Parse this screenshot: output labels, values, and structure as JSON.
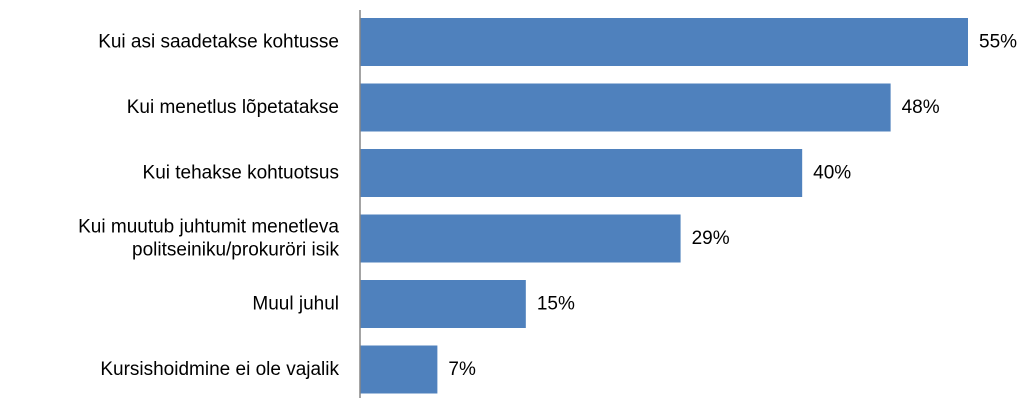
{
  "chart_data": {
    "type": "bar",
    "orientation": "horizontal",
    "categories": [
      [
        "Kui asi saadetakse kohtusse"
      ],
      [
        "Kui menetlus lõpetatakse"
      ],
      [
        "Kui tehakse kohtuotsus"
      ],
      [
        "Kui muutub juhtumit menetleva",
        "politseiniku/prokuröri isik"
      ],
      [
        "Muul juhul"
      ],
      [
        "Kursishoidmine ei ole vajalik"
      ]
    ],
    "values": [
      55,
      48,
      40,
      29,
      15,
      7
    ],
    "value_labels": [
      "55%",
      "48%",
      "40%",
      "29%",
      "15%",
      "7%"
    ],
    "title": "",
    "xlabel": "",
    "ylabel": "",
    "unit": "%",
    "xlim": [
      0,
      60
    ],
    "grid": false,
    "legend": "none",
    "bar_color": "#4F81BD",
    "axis_color": "#868686"
  }
}
